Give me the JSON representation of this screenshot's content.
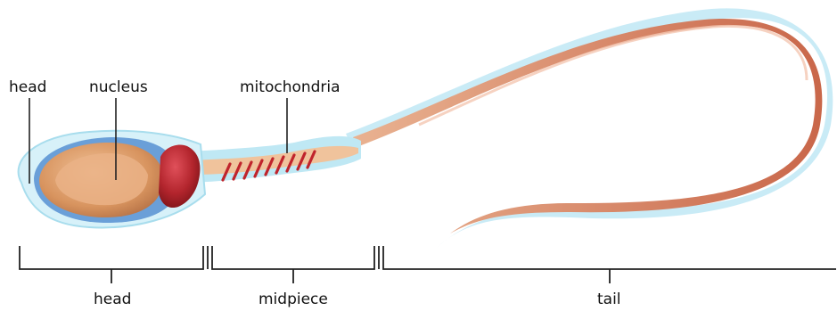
{
  "labels": {
    "head_top": "head",
    "nucleus": "nucleus",
    "mitochondria": "mitochondria",
    "head_bottom": "head",
    "midpiece": "midpiece",
    "tail": "tail"
  },
  "colors": {
    "outer_membrane": "#bfe8f4",
    "acrosome": "#6a9fd8",
    "head_body": "#e2a176",
    "nucleus": "#d89a6c",
    "centriole_red": "#b3252d",
    "tail_core": "#cc6f52",
    "midpiece_body": "#f0c39c",
    "bracket_line": "#222222"
  }
}
